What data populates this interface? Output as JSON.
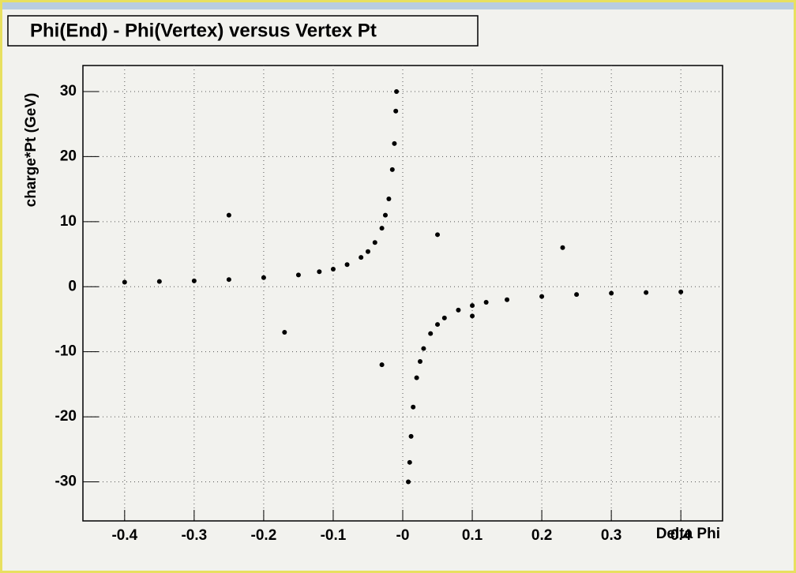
{
  "chart_data": {
    "type": "scatter",
    "title": "Phi(End) - Phi(Vertex) versus Vertex Pt",
    "x_label": "Delta Phi",
    "y_label": "charge*Pt (GeV)",
    "xlim": [
      -0.46,
      0.46
    ],
    "ylim": [
      -36,
      34
    ],
    "xticks": [
      -0.4,
      -0.3,
      -0.2,
      -0.1,
      {
        "value": 0,
        "label": "-0"
      },
      0.1,
      0.2,
      0.3,
      0.4
    ],
    "yticks": [
      -30,
      -20,
      -10,
      0,
      10,
      20,
      30
    ],
    "grid": true,
    "color": "#000000",
    "x": [
      -0.4,
      -0.35,
      -0.3,
      -0.25,
      -0.2,
      -0.15,
      -0.12,
      -0.1,
      -0.08,
      -0.06,
      -0.05,
      -0.04,
      -0.03,
      -0.025,
      -0.02,
      -0.015,
      -0.012,
      -0.01,
      -0.009,
      0.4,
      0.35,
      0.3,
      0.25,
      0.2,
      0.15,
      0.12,
      0.1,
      0.08,
      0.06,
      0.05,
      0.04,
      0.03,
      0.025,
      0.02,
      0.015,
      0.012,
      0.01,
      0.008,
      -0.25,
      0.23,
      -0.17,
      0.05,
      -0.03,
      0.1
    ],
    "values": [
      0.7,
      0.8,
      0.9,
      1.1,
      1.4,
      1.8,
      2.3,
      2.7,
      3.4,
      4.5,
      5.4,
      6.8,
      9,
      11,
      13.5,
      18,
      22,
      27,
      30,
      -0.8,
      -0.9,
      -1,
      -1.2,
      -1.5,
      -2,
      -2.4,
      -2.9,
      -3.6,
      -4.8,
      -5.8,
      -7.2,
      -9.5,
      -11.5,
      -14,
      -18.5,
      -23,
      -27,
      -30,
      11,
      6,
      -7,
      8,
      -12,
      -4.5
    ]
  }
}
